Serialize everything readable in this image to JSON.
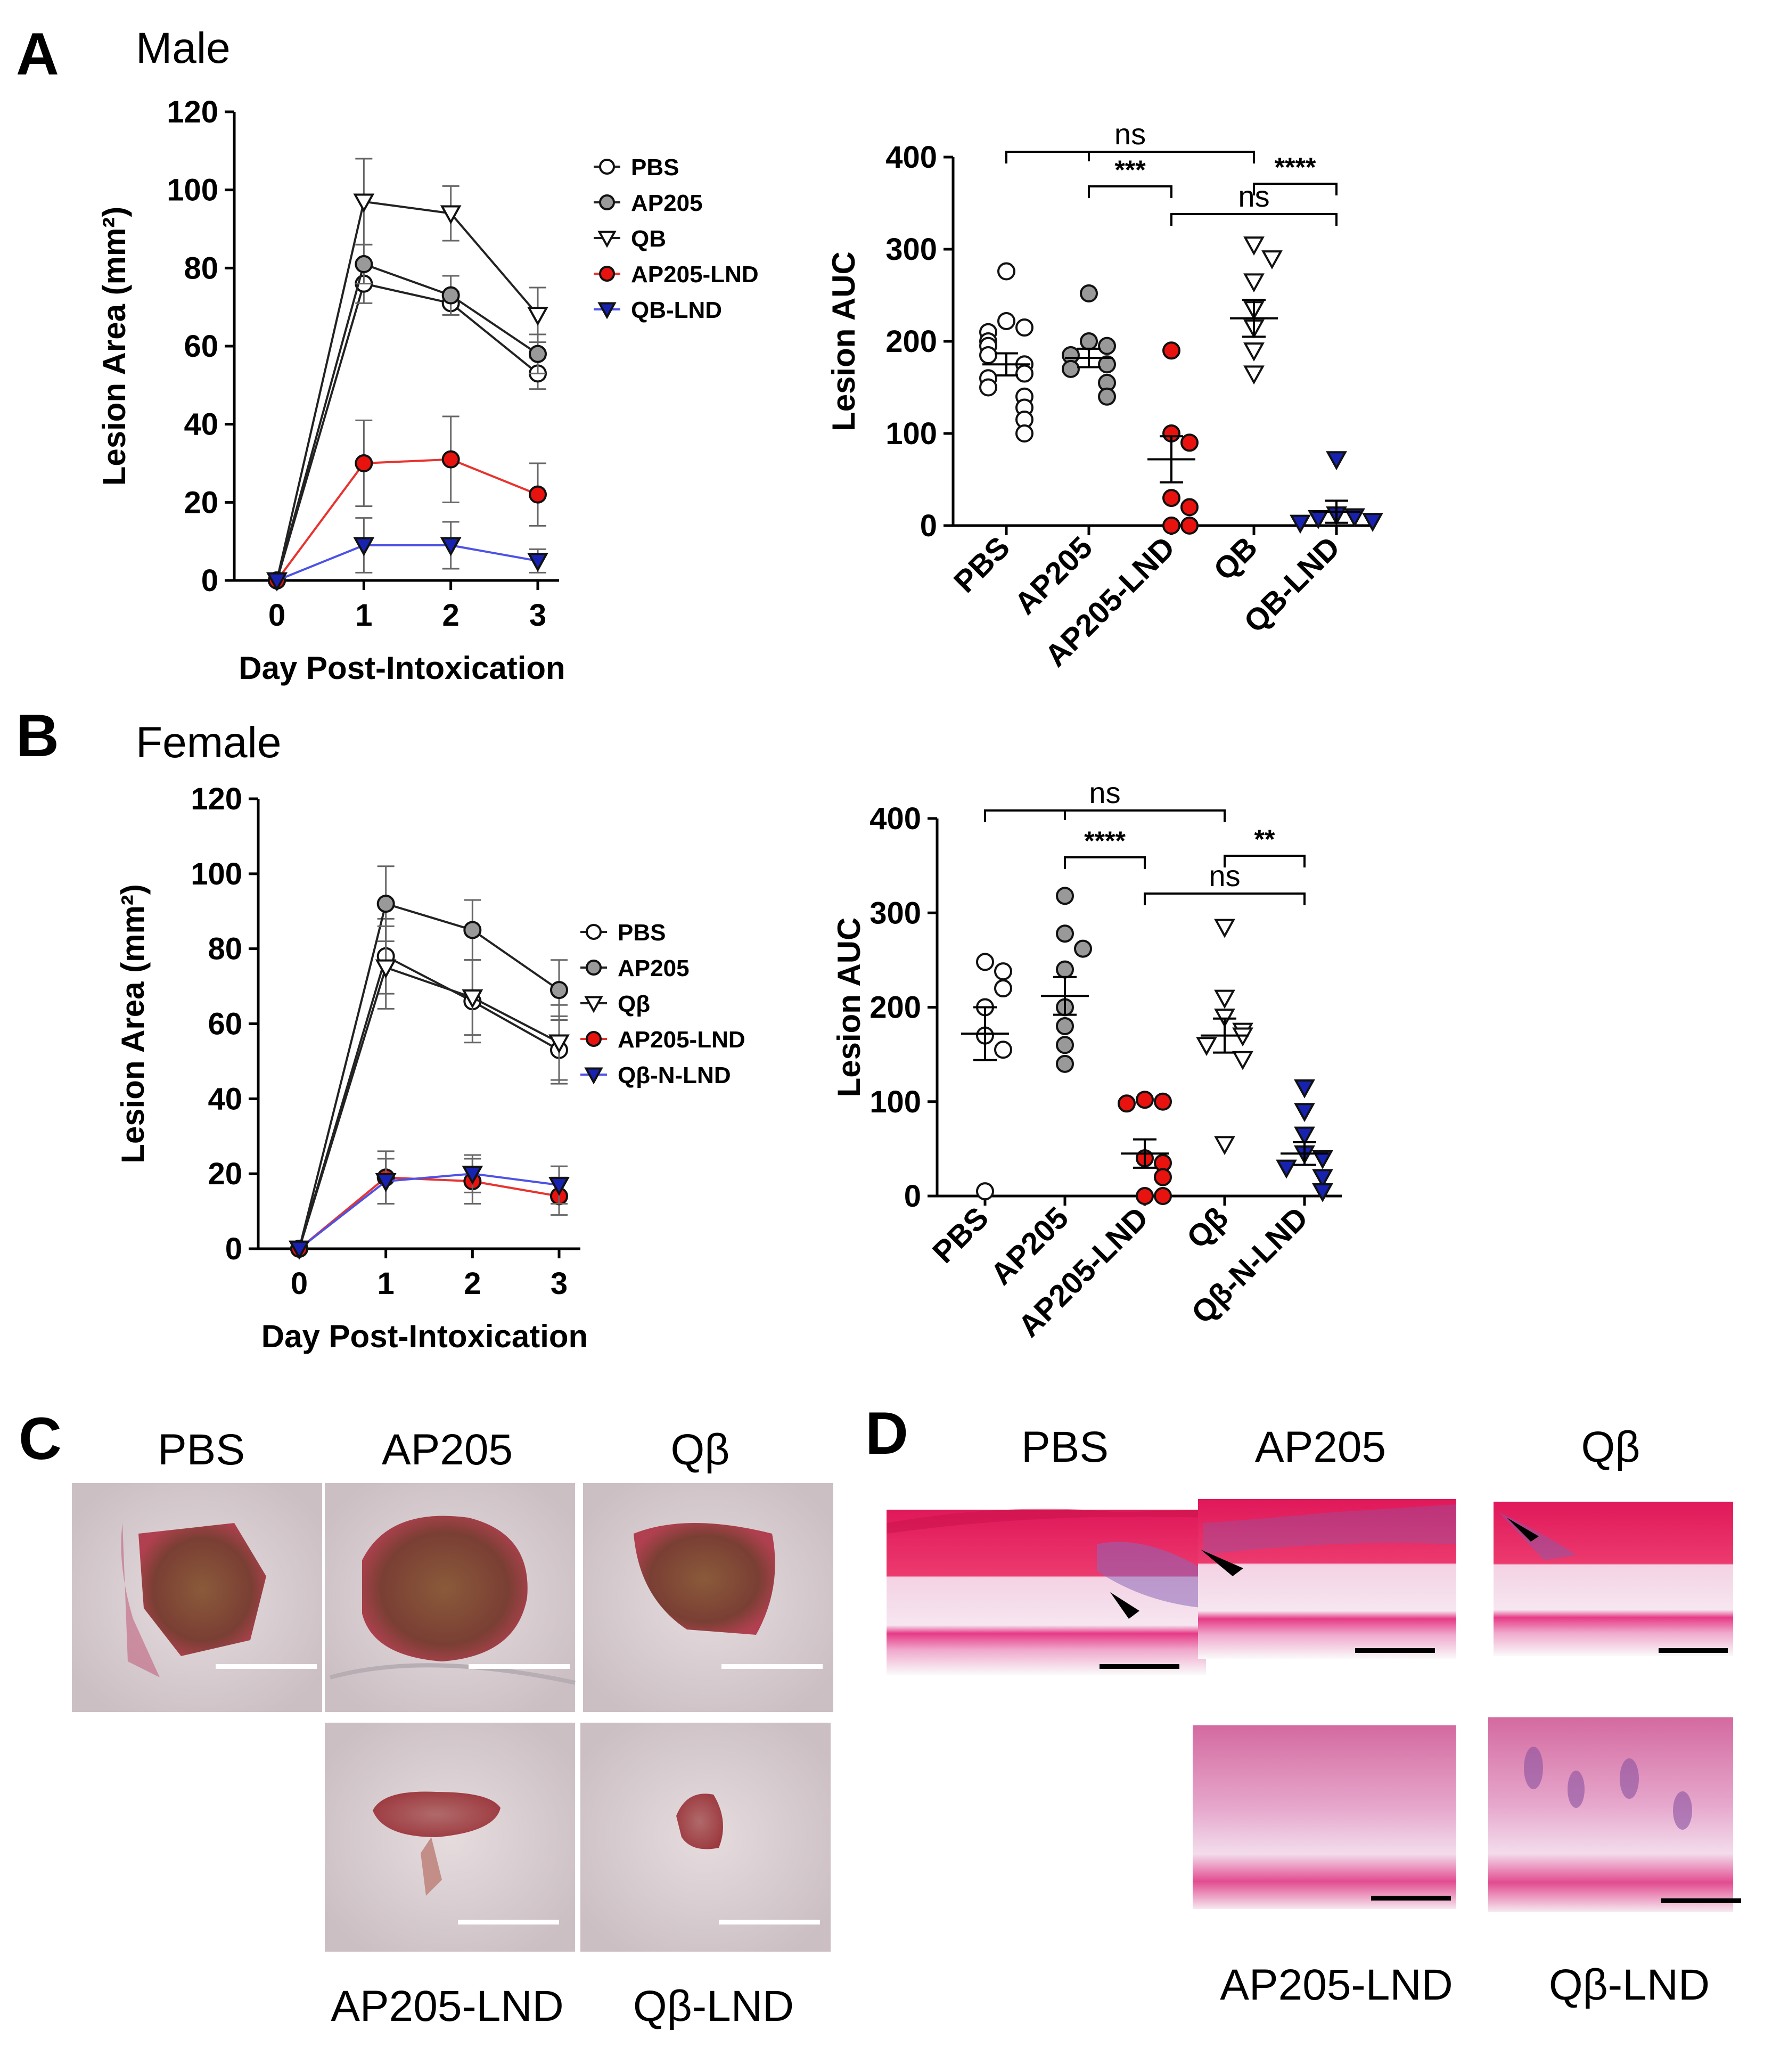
{
  "panels": {
    "A": {
      "letter": "A",
      "title": "Male"
    },
    "B": {
      "letter": "B",
      "title": "Female"
    },
    "C": {
      "letter": "C"
    },
    "D": {
      "letter": "D"
    }
  },
  "colors": {
    "pbs": "#ffffff",
    "ap205": "#999999",
    "qb": "#ffffff",
    "ap205_lnd": "#e8120f",
    "qb_lnd": "#1722b0",
    "line_black": "#222222",
    "line_red": "#e8332f",
    "line_blue": "#4d52e6"
  },
  "chart_data": [
    {
      "id": "A-line",
      "type": "line",
      "xlabel": "Day Post-Intoxication",
      "ylabel": "Lesion Area (mm²)",
      "x": [
        0,
        1,
        2,
        3
      ],
      "x_ticks": [
        "0",
        "1",
        "2",
        "3"
      ],
      "ylim": [
        0,
        120
      ],
      "y_ticks": [
        "0",
        "20",
        "40",
        "60",
        "80",
        "100",
        "120"
      ],
      "legend": "right",
      "series": [
        {
          "name": "PBS",
          "marker": "circle",
          "fill": "#ffffff",
          "line": "#222222",
          "values": [
            0,
            76,
            71,
            53
          ],
          "err": [
            0,
            5,
            3,
            4
          ]
        },
        {
          "name": "AP205",
          "marker": "circle",
          "fill": "#999999",
          "line": "#222222",
          "values": [
            0,
            81,
            73,
            58
          ],
          "err": [
            0,
            5,
            5,
            5
          ]
        },
        {
          "name": "QB",
          "marker": "tri-down",
          "fill": "#ffffff",
          "line": "#222222",
          "values": [
            0,
            97,
            94,
            68
          ],
          "err": [
            0,
            11,
            7,
            7
          ]
        },
        {
          "name": "AP205-LND",
          "marker": "circle",
          "fill": "#e8120f",
          "line": "#e8332f",
          "values": [
            0,
            30,
            31,
            22
          ],
          "err": [
            0,
            11,
            11,
            8
          ]
        },
        {
          "name": "QB-LND",
          "marker": "tri-down",
          "fill": "#1722b0",
          "line": "#4d52e6",
          "values": [
            0,
            9,
            9,
            5
          ],
          "err": [
            0,
            7,
            6,
            3
          ]
        }
      ]
    },
    {
      "id": "A-scatter",
      "type": "scatter",
      "ylabel": "Lesion AUC",
      "categories": [
        "PBS",
        "AP205",
        "AP205-LND",
        "QB",
        "QB-LND"
      ],
      "ylim": [
        0,
        400
      ],
      "y_ticks": [
        "0",
        "100",
        "200",
        "300",
        "400"
      ],
      "groups": [
        {
          "name": "PBS",
          "marker": "circle",
          "fill": "#ffffff",
          "mean": 175,
          "sem": 12,
          "points": [
            276,
            222,
            215,
            210,
            200,
            195,
            185,
            175,
            165,
            160,
            150,
            140,
            128,
            115,
            100
          ]
        },
        {
          "name": "AP205",
          "marker": "circle",
          "fill": "#999999",
          "mean": 182,
          "sem": 10,
          "points": [
            252,
            200,
            195,
            185,
            175,
            170,
            155,
            140
          ]
        },
        {
          "name": "AP205-LND",
          "marker": "circle",
          "fill": "#e8120f",
          "mean": 72,
          "sem": 25,
          "points": [
            190,
            100,
            90,
            30,
            20,
            0,
            0
          ]
        },
        {
          "name": "QB",
          "marker": "tri-down",
          "fill": "#ffffff",
          "mean": 225,
          "sem": 20,
          "points": [
            305,
            290,
            265,
            235,
            215,
            190,
            165
          ]
        },
        {
          "name": "QB-LND",
          "marker": "tri-down",
          "fill": "#1722b0",
          "mean": 15,
          "sem": 12,
          "points": [
            72,
            12,
            10,
            8,
            5,
            3
          ]
        }
      ],
      "comparisons": [
        {
          "label": "ns",
          "from": "PBS",
          "to": "QB"
        },
        {
          "label": "***",
          "from": "AP205",
          "to": "AP205-LND"
        },
        {
          "label": "****",
          "from": "QB",
          "to": "QB-LND"
        },
        {
          "label": "ns",
          "from": "AP205-LND",
          "to": "QB-LND"
        }
      ]
    },
    {
      "id": "B-line",
      "type": "line",
      "xlabel": "Day Post-Intoxication",
      "ylabel": "Lesion Area (mm²)",
      "x": [
        0,
        1,
        2,
        3
      ],
      "x_ticks": [
        "0",
        "1",
        "2",
        "3"
      ],
      "ylim": [
        0,
        120
      ],
      "y_ticks": [
        "0",
        "20",
        "40",
        "60",
        "80",
        "100",
        "120"
      ],
      "legend": "right",
      "series": [
        {
          "name": "PBS",
          "marker": "circle",
          "fill": "#ffffff",
          "line": "#222222",
          "values": [
            0,
            78,
            66,
            53
          ],
          "err": [
            0,
            10,
            11,
            9
          ]
        },
        {
          "name": "AP205",
          "marker": "circle",
          "fill": "#999999",
          "line": "#222222",
          "values": [
            0,
            92,
            85,
            69
          ],
          "err": [
            0,
            10,
            8,
            8
          ]
        },
        {
          "name": "Qβ",
          "marker": "tri-down",
          "fill": "#ffffff",
          "line": "#222222",
          "values": [
            0,
            75,
            67,
            55
          ],
          "err": [
            0,
            11,
            10,
            10
          ]
        },
        {
          "name": "AP205-LND",
          "marker": "circle",
          "fill": "#e8120f",
          "line": "#e8332f",
          "values": [
            0,
            19,
            18,
            14
          ],
          "err": [
            0,
            7,
            6,
            5
          ]
        },
        {
          "name": "Qβ-N-LND",
          "marker": "tri-down",
          "fill": "#1722b0",
          "line": "#4d52e6",
          "values": [
            0,
            18,
            20,
            17
          ],
          "err": [
            0,
            6,
            5,
            5
          ]
        }
      ]
    },
    {
      "id": "B-scatter",
      "type": "scatter",
      "ylabel": "Lesion AUC",
      "categories": [
        "PBS",
        "AP205",
        "AP205-LND",
        "Qβ",
        "Qβ-N-LND"
      ],
      "ylim": [
        0,
        400
      ],
      "y_ticks": [
        "0",
        "100",
        "200",
        "300",
        "400"
      ],
      "groups": [
        {
          "name": "PBS",
          "marker": "circle",
          "fill": "#ffffff",
          "mean": 172,
          "sem": 28,
          "points": [
            248,
            238,
            220,
            200,
            170,
            155,
            5
          ]
        },
        {
          "name": "AP205",
          "marker": "circle",
          "fill": "#999999",
          "mean": 212,
          "sem": 20,
          "points": [
            318,
            278,
            262,
            240,
            200,
            180,
            160,
            140
          ]
        },
        {
          "name": "AP205-LND",
          "marker": "circle",
          "fill": "#e8120f",
          "mean": 45,
          "sem": 15,
          "points": [
            102,
            100,
            98,
            40,
            35,
            20,
            0,
            0
          ]
        },
        {
          "name": "Qβ",
          "marker": "tri-down",
          "fill": "#ffffff",
          "mean": 170,
          "sem": 18,
          "points": [
            285,
            210,
            190,
            175,
            170,
            160,
            145,
            55
          ]
        },
        {
          "name": "Qβ-N-LND",
          "marker": "tri-down",
          "fill": "#1722b0",
          "mean": 45,
          "sem": 12,
          "points": [
            115,
            90,
            65,
            45,
            40,
            30,
            20,
            5
          ]
        }
      ],
      "comparisons": [
        {
          "label": "ns",
          "from": "PBS",
          "to": "Qβ"
        },
        {
          "label": "****",
          "from": "AP205",
          "to": "AP205-LND"
        },
        {
          "label": "**",
          "from": "Qβ",
          "to": "Qβ-N-LND"
        },
        {
          "label": "ns",
          "from": "AP205-LND",
          "to": "Qβ-N-LND"
        }
      ]
    }
  ],
  "photos_C": {
    "top_labels": [
      "PBS",
      "AP205",
      "Qβ"
    ],
    "bottom_labels": [
      "AP205-LND",
      "Qβ-LND"
    ]
  },
  "histology_D": {
    "top_labels": [
      "PBS",
      "AP205",
      "Qβ"
    ],
    "bottom_labels": [
      "AP205-LND",
      "Qβ-LND"
    ]
  }
}
